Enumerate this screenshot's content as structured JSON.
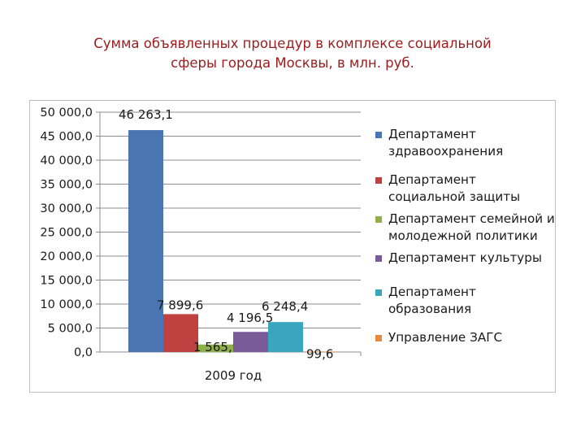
{
  "chart_data": {
    "type": "bar",
    "title": "Сумма объявленных процедур в комплексе социальной сферы города Москвы, в млн. руб.",
    "title_lines": [
      "Сумма объявленных процедур в комплексе социальной",
      "сферы города Москвы, в млн. руб."
    ],
    "categories": [
      "2009 год"
    ],
    "ylim": [
      0,
      50000
    ],
    "yticks": [
      "50 000,0",
      "45 000,0",
      "40 000,0",
      "35 000,0",
      "30 000,0",
      "25 000,0",
      "20 000,0",
      "15 000,0",
      "10 000,0",
      "5 000,0",
      "0,0"
    ],
    "grid": true,
    "legend_position": "right",
    "series": [
      {
        "name": "Департамент здравоохранения",
        "legend_lines": [
          "Департамент",
          "здравоохранения"
        ],
        "values": [
          46263.1
        ],
        "label": "46 263,1",
        "color": "#4a75b2"
      },
      {
        "name": "Департамент социальной защиты",
        "legend_lines": [
          "Департамент",
          "социальной защиты"
        ],
        "values": [
          7899.6
        ],
        "label": "7 899,6",
        "color": "#c0413f"
      },
      {
        "name": "Департамент семейной и молодежной политики",
        "legend_lines": [
          "Департамент семейной и",
          "молодежной политики"
        ],
        "values": [
          1565.9
        ],
        "label": "1 565,9",
        "color": "#8fb04a"
      },
      {
        "name": "Департамент культуры",
        "legend_lines": [
          "Департамент культуры"
        ],
        "values": [
          4196.5
        ],
        "label": "4 196,5",
        "color": "#7a5b9a"
      },
      {
        "name": "Департамент образования",
        "legend_lines": [
          "Департамент",
          "образования"
        ],
        "values": [
          6248.4
        ],
        "label": "6 248,4",
        "color": "#3aa5bf"
      },
      {
        "name": "Управление ЗАГС",
        "legend_lines": [
          "Управление ЗАГС"
        ],
        "values": [
          99.6
        ],
        "label": "99,6",
        "color": "#e9883a"
      }
    ]
  }
}
